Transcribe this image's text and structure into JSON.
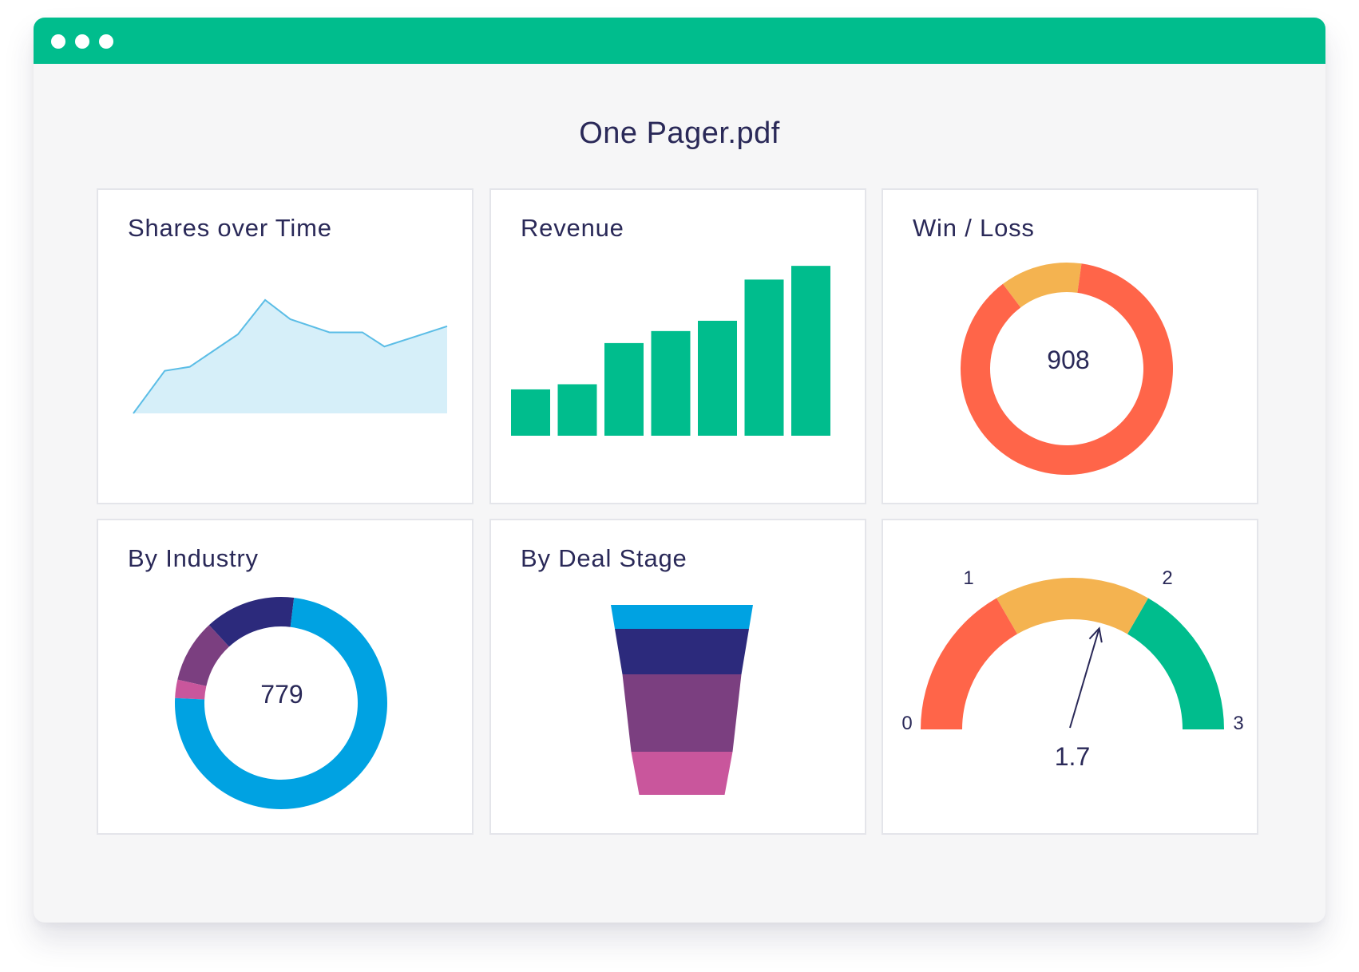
{
  "window": {
    "title": "One Pager.pdf",
    "titlebar_color": "#00bd8d",
    "controls": [
      "window-dot",
      "window-dot",
      "window-dot"
    ]
  },
  "cards": {
    "shares": {
      "title": "Shares over Time"
    },
    "revenue": {
      "title": "Revenue"
    },
    "winloss": {
      "title": "Win / Loss",
      "center_value": "908"
    },
    "industry": {
      "title": "By Industry",
      "center_value": "779"
    },
    "dealstage": {
      "title": "By Deal Stage"
    },
    "gauge": {
      "value_label": "1.7",
      "ticks": [
        "0",
        "1",
        "2",
        "3"
      ]
    }
  },
  "chart_data": [
    {
      "id": "shares",
      "type": "area",
      "title": "Shares over Time",
      "values": [
        0,
        4.2,
        4.6,
        7.8,
        11.2,
        9.3,
        8.0,
        8.0,
        6.6,
        8.6
      ],
      "ylim": [
        0,
        13
      ],
      "color": "#5bbde6",
      "fill": "#d6eff9"
    },
    {
      "id": "revenue",
      "type": "bar",
      "title": "Revenue",
      "values": [
        27,
        30,
        54,
        61,
        67,
        91,
        99
      ],
      "ylim": [
        0,
        100
      ],
      "color": "#00bd8d"
    },
    {
      "id": "winloss",
      "type": "pie",
      "title": "Win / Loss",
      "center_label": "908",
      "slices": [
        {
          "value": 87.5,
          "color": "#ff6549"
        },
        {
          "value": 12.5,
          "color": "#f4b350"
        }
      ]
    },
    {
      "id": "industry",
      "type": "pie",
      "title": "By Industry",
      "center_label": "779",
      "slices": [
        {
          "value": 73.8,
          "color": "#00a2e2"
        },
        {
          "value": 2.8,
          "color": "#c9569c"
        },
        {
          "value": 9.6,
          "color": "#7b3f80"
        },
        {
          "value": 13.8,
          "color": "#2c2a7c"
        }
      ]
    },
    {
      "id": "dealstage",
      "type": "bar",
      "title": "By Deal Stage",
      "stages": [
        {
          "value": 100,
          "color": "#00a2e2"
        },
        {
          "value": 94,
          "color": "#2c2a7c"
        },
        {
          "value": 80,
          "color": "#7b3f80"
        },
        {
          "value": 60,
          "color": "#c9569c"
        }
      ]
    },
    {
      "id": "gauge",
      "type": "pie",
      "value": 1.7,
      "min": 0,
      "max": 3,
      "tick_labels": [
        "0",
        "1",
        "2",
        "3"
      ],
      "bands": [
        {
          "from": 0,
          "to": 1,
          "color": "#ff6549"
        },
        {
          "from": 1,
          "to": 2,
          "color": "#f4b350"
        },
        {
          "from": 2,
          "to": 3,
          "color": "#00bd8d"
        }
      ]
    }
  ]
}
